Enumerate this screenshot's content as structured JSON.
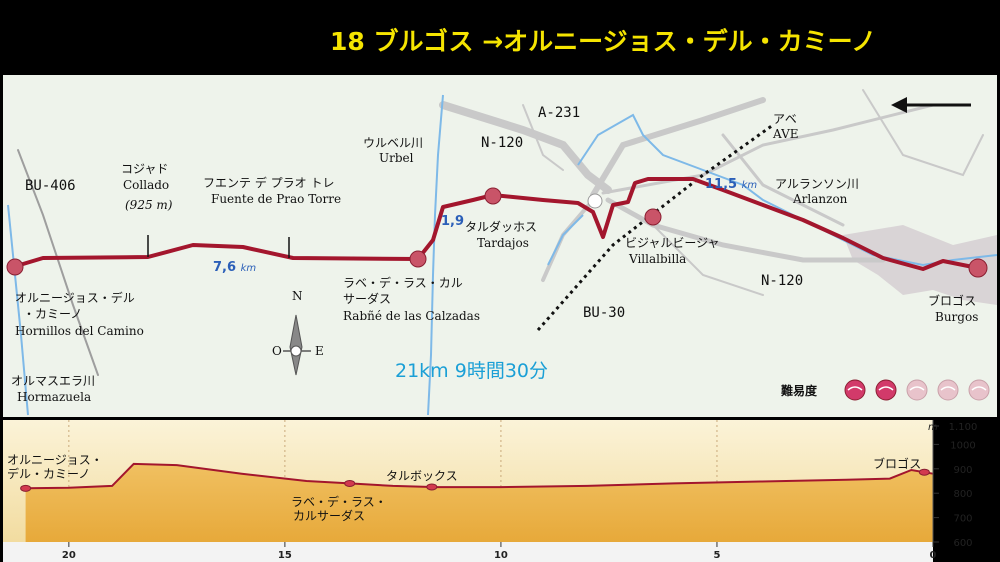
{
  "title": "18 ブルゴス →オルニージョス・デル・カミーノ",
  "colors": {
    "route": "#a3162d",
    "river": "#7eb9e8",
    "road": "#c9c9c9",
    "background": "#eef3eb",
    "title": "#f5e400",
    "distance": "#2b5fb8",
    "summary": "#1a9fd6"
  },
  "map": {
    "direction_arrow": "arrow-left-icon",
    "compass": {
      "n": "N",
      "e": "E",
      "w": "O",
      "s": "S"
    },
    "summary": "21km 9時間30分",
    "difficulty": {
      "label": "難易度",
      "level": 2,
      "max": 5
    },
    "roads": {
      "bu406": "BU-406",
      "a231": "A-231",
      "n120_top": "N-120",
      "n120_bottom": "N-120",
      "bu30": "BU-30"
    },
    "rail": {
      "jp": "アベ",
      "lat": "AVE"
    },
    "rivers": {
      "urbel": {
        "jp": "ウルベル川",
        "lat": "Urbel"
      },
      "arlanzon": {
        "jp": "アルランソン川",
        "lat": "Arlanzon"
      },
      "hormazuela": {
        "jp": "オルマスエラ川",
        "lat": "Hormazuela"
      }
    },
    "places": {
      "hornillos": {
        "jp1": "オルニージョス・デル",
        "jp2": "・カミーノ",
        "lat": "Hornillos del Camino"
      },
      "collado": {
        "jp": "コジャド",
        "lat": "Collado",
        "alt": "(925 m)"
      },
      "fuente": {
        "jp": "フエンテ デ プラオ トレ",
        "lat": "Fuente de Prao Torre"
      },
      "rabe": {
        "jp1": "ラベ・デ・ラス・カル",
        "jp2": "サーダス",
        "lat": "Rabñé de las Calzadas"
      },
      "tardajos": {
        "jp": "タルダッホス",
        "lat": "Tardajos"
      },
      "villalbilla": {
        "jp": "ビジャルビージャ",
        "lat": "Villalbilla"
      },
      "burgos": {
        "jp": "ブロゴス",
        "lat": "Burgos"
      }
    },
    "distances": {
      "d1": "7,6",
      "d2": "1,9",
      "d3": "11,5",
      "unit": "km"
    }
  },
  "profile": {
    "unit": "m",
    "y_ticks": [
      "1.100",
      "1000",
      "900",
      "800",
      "700",
      "600"
    ],
    "x_ticks": [
      "20",
      "15",
      "10",
      "5",
      "0"
    ],
    "labels": {
      "hornillos1": "オルニージョス・",
      "hornillos2": "デル・カミーノ",
      "rabe1": "ラベ・デ・ラス・",
      "rabe2": "カルサーダス",
      "tarbox": "タルボックス",
      "burgos": "ブロゴス"
    },
    "chart_data": {
      "type": "area",
      "x": [
        21,
        20,
        19,
        18.5,
        17.5,
        16,
        14.5,
        13.5,
        12.5,
        11.5,
        10,
        8,
        6,
        4,
        2,
        1,
        0.5,
        0
      ],
      "y": [
        820,
        822,
        830,
        920,
        915,
        880,
        850,
        840,
        830,
        825,
        825,
        830,
        840,
        848,
        855,
        860,
        895,
        880
      ],
      "xlim": [
        21.2,
        0
      ],
      "ylim": [
        600,
        1100
      ]
    }
  }
}
